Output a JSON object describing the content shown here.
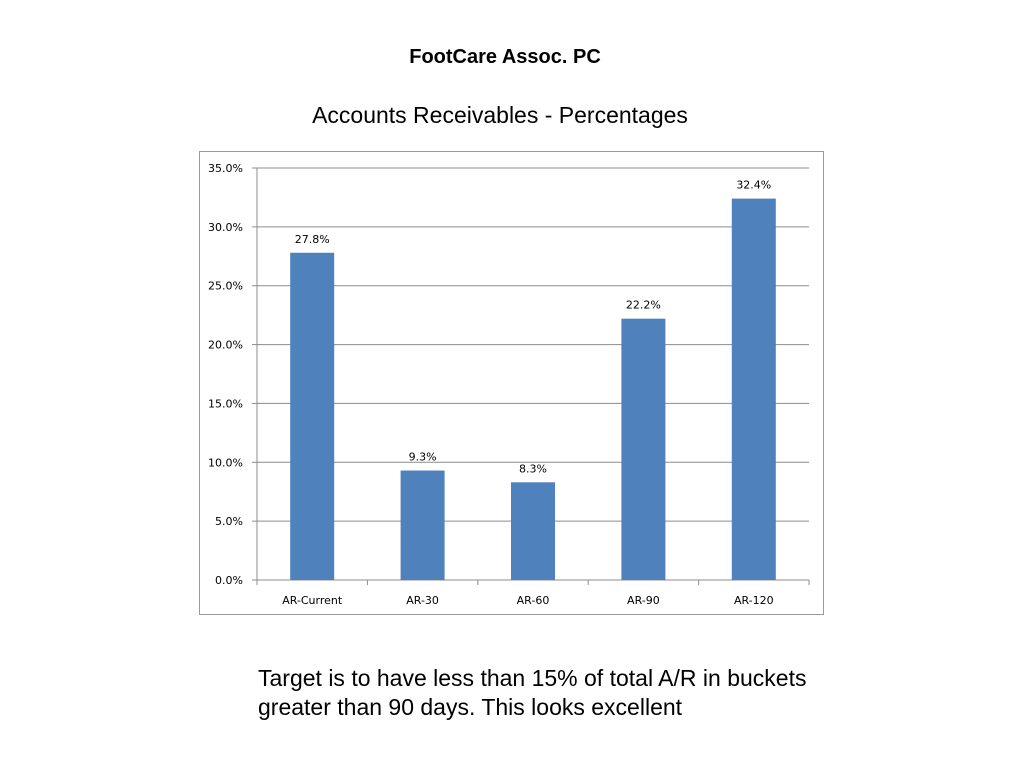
{
  "header": {
    "company": "FootCare Assoc. PC",
    "title": "Accounts Receivables - Percentages"
  },
  "chart_data": {
    "type": "bar",
    "categories": [
      "AR-Current",
      "AR-30",
      "AR-60",
      "AR-90",
      "AR-120"
    ],
    "values": [
      27.8,
      9.3,
      8.3,
      22.2,
      32.4
    ],
    "data_labels": [
      "27.8%",
      "9.3%",
      "8.3%",
      "22.2%",
      "32.4%"
    ],
    "ylim": [
      0,
      35
    ],
    "yticks": [
      "0.0%",
      "5.0%",
      "10.0%",
      "15.0%",
      "20.0%",
      "25.0%",
      "30.0%",
      "35.0%"
    ],
    "ytick_values": [
      0,
      5,
      10,
      15,
      20,
      25,
      30,
      35
    ],
    "grid": true,
    "legend": "none",
    "bar_color": "#4f81bd",
    "grid_color": "#8c8c8c"
  },
  "note": {
    "text": "Target is to have less than 15% of total A/R in buckets greater than 90 days. This looks excellent"
  }
}
